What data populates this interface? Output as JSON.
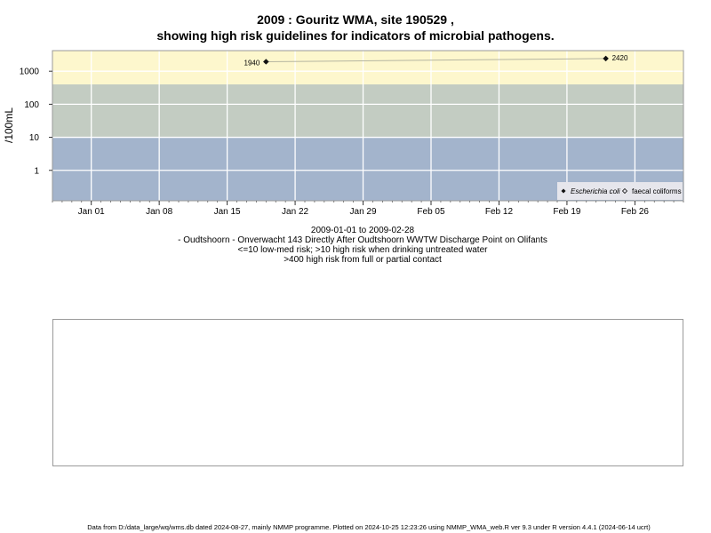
{
  "title_line1": "2009 : Gouritz WMA, site 190529 ,",
  "title_line2": "showing high risk guidelines for indicators of microbial pathogens.",
  "chart_data": {
    "type": "scatter",
    "y_scale": "log",
    "ylabel": "/100mL",
    "y_ticks": [
      1,
      10,
      100,
      1000
    ],
    "y_tick_labels": [
      "1",
      "10",
      "100",
      "1000"
    ],
    "ylim": [
      0.12,
      4200
    ],
    "xlim": [
      "2008-12-28",
      "2009-03-03"
    ],
    "x_ticks": [
      "2009-01-01",
      "2009-01-08",
      "2009-01-15",
      "2009-01-22",
      "2009-01-29",
      "2009-02-05",
      "2009-02-12",
      "2009-02-19",
      "2009-02-26"
    ],
    "x_tick_labels": [
      "Jan 01",
      "Jan 08",
      "Jan 15",
      "Jan 22",
      "Jan 29",
      "Feb 05",
      "Feb 12",
      "Feb 19",
      "Feb 26"
    ],
    "risk_bands": [
      {
        "from": 0.12,
        "to": 10,
        "color": "#a3b4cc"
      },
      {
        "from": 10,
        "to": 400,
        "color": "#c3ccc2"
      },
      {
        "from": 400,
        "to": 4200,
        "color": "#fdf7cd"
      }
    ],
    "series": [
      {
        "name": "Escherichia coli",
        "marker": "filled-diamond",
        "x": [
          "2009-01-19",
          "2009-02-23"
        ],
        "values": [
          1940,
          2420
        ],
        "point_labels": [
          "1940",
          "2420"
        ]
      },
      {
        "name": "faecal coliforms",
        "marker": "open-diamond",
        "x": [],
        "values": []
      }
    ],
    "legend": {
      "placement": "bottom-right",
      "items": [
        "Escherichia coli",
        "faecal coliforms"
      ]
    },
    "grid": true
  },
  "caption": {
    "line1": "2009-01-01 to 2009-02-28",
    "line2": "- Oudtshoorn - Onverwacht 143 Directly After Oudtshoorn WWTW Discharge Point on Olifants",
    "line3": "<=10 low-med risk; >10 high risk when drinking untreated water",
    "line4": ">400 high risk from full or partial contact"
  },
  "footer": "Data from D:/data_large/wq/wms.db dated 2024-08-27, mainly NMMP programme. Plotted on 2024-10-25 12:23:26 using NMMP_WMA_web.R ver 9.3 under R version 4.4.1 (2024-06-14 ucrt)"
}
